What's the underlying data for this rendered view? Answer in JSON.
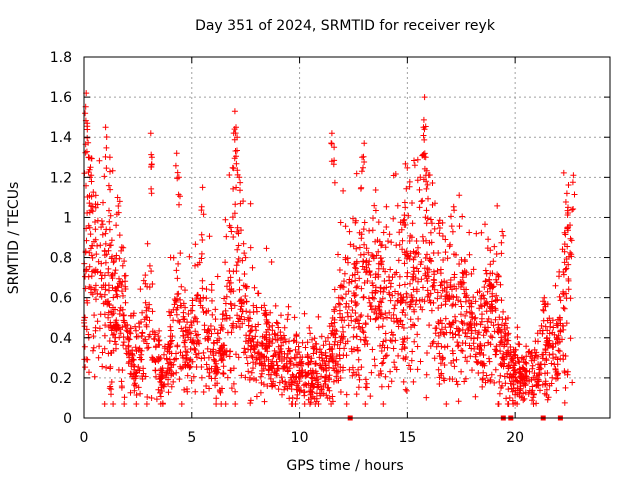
{
  "chart_data": {
    "type": "scatter",
    "title": "Day 351 of 2024, SRMTID for receiver reyk",
    "xlabel": "GPS time / hours",
    "ylabel": "SRMTID / TECUs",
    "xlim": [
      0,
      24.4
    ],
    "ylim": [
      0,
      1.8
    ],
    "xticks": [
      0,
      5,
      10,
      15,
      20
    ],
    "xtick_labels": [
      "0",
      "5",
      "10",
      "15",
      "20"
    ],
    "yticks": [
      0,
      0.2,
      0.4,
      0.6,
      0.8,
      1,
      1.2,
      1.4,
      1.6,
      1.8
    ],
    "ytick_labels": [
      "0",
      "0.2",
      "0.4",
      "0.6",
      "0.8",
      "1",
      "1.2",
      "1.4",
      "1.6",
      "1.8"
    ],
    "grid": true,
    "marker": "+",
    "color": "#ff0000",
    "series": [
      {
        "name": "SRMTID",
        "profile": [
          [
            0.0,
            0.58
          ],
          [
            0.2,
            0.75
          ],
          [
            0.5,
            0.72
          ],
          [
            0.8,
            0.7
          ],
          [
            1.0,
            0.62
          ],
          [
            1.3,
            0.58
          ],
          [
            1.6,
            0.6
          ],
          [
            1.8,
            0.5
          ],
          [
            2.0,
            0.42
          ],
          [
            2.3,
            0.3
          ],
          [
            2.6,
            0.3
          ],
          [
            2.9,
            0.45
          ],
          [
            3.1,
            0.58
          ],
          [
            3.3,
            0.28
          ],
          [
            3.6,
            0.22
          ],
          [
            3.9,
            0.24
          ],
          [
            4.1,
            0.4
          ],
          [
            4.4,
            0.55
          ],
          [
            4.6,
            0.42
          ],
          [
            4.9,
            0.32
          ],
          [
            5.2,
            0.42
          ],
          [
            5.5,
            0.62
          ],
          [
            5.8,
            0.35
          ],
          [
            6.1,
            0.28
          ],
          [
            6.4,
            0.28
          ],
          [
            6.7,
            0.5
          ],
          [
            7.0,
            0.72
          ],
          [
            7.3,
            0.5
          ],
          [
            7.6,
            0.4
          ],
          [
            8.0,
            0.32
          ],
          [
            8.4,
            0.34
          ],
          [
            8.8,
            0.3
          ],
          [
            9.2,
            0.3
          ],
          [
            9.6,
            0.25
          ],
          [
            10.0,
            0.22
          ],
          [
            10.4,
            0.24
          ],
          [
            10.8,
            0.24
          ],
          [
            11.1,
            0.2
          ],
          [
            11.4,
            0.25
          ],
          [
            11.7,
            0.38
          ],
          [
            12.0,
            0.5
          ],
          [
            12.4,
            0.55
          ],
          [
            12.8,
            0.55
          ],
          [
            13.2,
            0.58
          ],
          [
            13.6,
            0.62
          ],
          [
            14.0,
            0.55
          ],
          [
            14.4,
            0.52
          ],
          [
            14.8,
            0.65
          ],
          [
            15.1,
            0.7
          ],
          [
            15.5,
            0.72
          ],
          [
            15.8,
            0.8
          ],
          [
            16.1,
            0.72
          ],
          [
            16.5,
            0.5
          ],
          [
            16.9,
            0.55
          ],
          [
            17.3,
            0.6
          ],
          [
            17.7,
            0.5
          ],
          [
            18.1,
            0.42
          ],
          [
            18.5,
            0.38
          ],
          [
            18.9,
            0.55
          ],
          [
            19.3,
            0.4
          ],
          [
            19.6,
            0.28
          ],
          [
            19.9,
            0.22
          ],
          [
            20.2,
            0.2
          ],
          [
            20.6,
            0.2
          ],
          [
            21.0,
            0.22
          ],
          [
            21.3,
            0.3
          ],
          [
            21.6,
            0.28
          ],
          [
            21.9,
            0.3
          ],
          [
            22.2,
            0.5
          ],
          [
            22.4,
            0.7
          ],
          [
            22.65,
            0.72
          ]
        ],
        "peaks": [
          [
            0.05,
            1.52
          ],
          [
            0.1,
            1.62
          ],
          [
            0.15,
            1.47
          ],
          [
            0.3,
            1.25
          ],
          [
            1.0,
            1.45
          ],
          [
            1.2,
            1.3
          ],
          [
            3.1,
            1.42
          ],
          [
            3.15,
            1.3
          ],
          [
            4.3,
            1.32
          ],
          [
            4.4,
            1.2
          ],
          [
            5.5,
            1.15
          ],
          [
            7.0,
            1.53
          ],
          [
            7.05,
            1.45
          ],
          [
            7.1,
            1.4
          ],
          [
            7.2,
            1.2
          ],
          [
            11.5,
            1.42
          ],
          [
            11.6,
            1.35
          ],
          [
            13.0,
            1.37
          ],
          [
            12.9,
            1.3
          ],
          [
            15.8,
            1.6
          ],
          [
            15.75,
            1.45
          ],
          [
            15.85,
            1.3
          ],
          [
            15.6,
            1.2
          ],
          [
            14.9,
            1.05
          ],
          [
            19.4,
            0.93
          ],
          [
            21.35,
            0.6
          ],
          [
            22.4,
            1.12
          ],
          [
            22.45,
            1.05
          ],
          [
            22.7,
            1.21
          ]
        ],
        "zero_markers_x": [
          12.35,
          19.45,
          19.8,
          21.3,
          22.1
        ]
      }
    ]
  }
}
